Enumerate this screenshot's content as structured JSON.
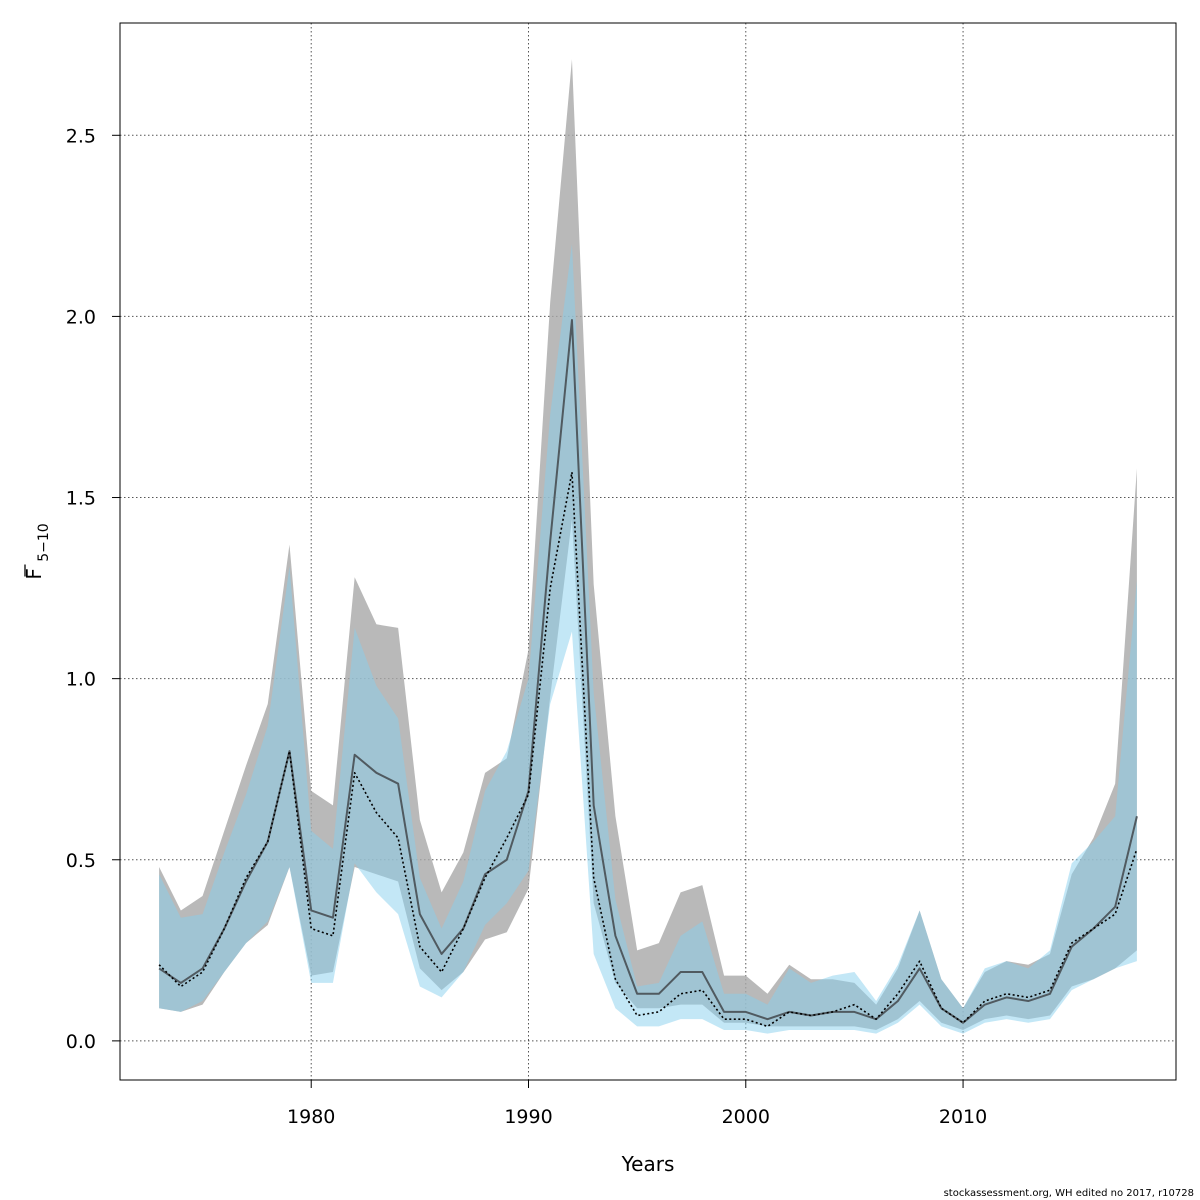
{
  "chart_data": {
    "type": "area",
    "xlabel": "Years",
    "ylabel_main": "F",
    "ylabel_sub": "5−10",
    "xlim": [
      1971.2,
      2019.8
    ],
    "ylim": [
      -0.108,
      2.81
    ],
    "xticks": [
      1980,
      1990,
      2000,
      2010
    ],
    "yticks": [
      0.0,
      0.5,
      1.0,
      1.5,
      2.0,
      2.5
    ],
    "ytick_labels": [
      "0.0",
      "0.5",
      "1.0",
      "1.5",
      "2.0",
      "2.5"
    ],
    "grid": true,
    "x": [
      1973,
      1974,
      1975,
      1976,
      1977,
      1978,
      1979,
      1980,
      1981,
      1982,
      1983,
      1984,
      1985,
      1986,
      1987,
      1988,
      1989,
      1990,
      1991,
      1992,
      1993,
      1994,
      1995,
      1996,
      1997,
      1998,
      1999,
      2000,
      2001,
      2002,
      2003,
      2004,
      2005,
      2006,
      2007,
      2008,
      2009,
      2010,
      2011,
      2012,
      2013,
      2014,
      2015,
      2016,
      2017,
      2018
    ],
    "series": [
      {
        "kind": "band",
        "color": "#a8a8a8",
        "lower": [
          0.09,
          0.08,
          0.1,
          0.19,
          0.27,
          0.32,
          0.48,
          0.18,
          0.19,
          0.48,
          0.46,
          0.44,
          0.2,
          0.14,
          0.19,
          0.28,
          0.3,
          0.42,
          0.95,
          1.44,
          0.38,
          0.16,
          0.09,
          0.09,
          0.1,
          0.1,
          0.05,
          0.05,
          0.04,
          0.04,
          0.04,
          0.04,
          0.04,
          0.03,
          0.06,
          0.11,
          0.05,
          0.03,
          0.06,
          0.07,
          0.06,
          0.07,
          0.15,
          0.17,
          0.2,
          0.25
        ],
        "upper": [
          0.48,
          0.36,
          0.4,
          0.58,
          0.76,
          0.93,
          1.37,
          0.69,
          0.65,
          1.28,
          1.15,
          1.14,
          0.61,
          0.41,
          0.52,
          0.74,
          0.78,
          1.08,
          2.04,
          2.71,
          1.26,
          0.62,
          0.25,
          0.27,
          0.41,
          0.43,
          0.18,
          0.18,
          0.13,
          0.21,
          0.17,
          0.17,
          0.16,
          0.1,
          0.2,
          0.36,
          0.17,
          0.09,
          0.19,
          0.22,
          0.21,
          0.24,
          0.46,
          0.56,
          0.71,
          1.58
        ]
      },
      {
        "kind": "band",
        "color": "#87cfee",
        "lower": [
          0.09,
          0.08,
          0.11,
          0.19,
          0.27,
          0.33,
          0.48,
          0.16,
          0.16,
          0.49,
          0.41,
          0.35,
          0.15,
          0.12,
          0.19,
          0.32,
          0.38,
          0.47,
          0.93,
          1.13,
          0.24,
          0.09,
          0.04,
          0.04,
          0.06,
          0.06,
          0.03,
          0.03,
          0.02,
          0.03,
          0.03,
          0.03,
          0.03,
          0.02,
          0.05,
          0.1,
          0.04,
          0.02,
          0.05,
          0.06,
          0.05,
          0.06,
          0.14,
          0.17,
          0.2,
          0.22
        ],
        "upper": [
          0.46,
          0.34,
          0.35,
          0.52,
          0.68,
          0.87,
          1.31,
          0.58,
          0.53,
          1.14,
          0.98,
          0.89,
          0.45,
          0.31,
          0.44,
          0.69,
          0.8,
          1.0,
          1.73,
          2.2,
          0.96,
          0.39,
          0.15,
          0.16,
          0.29,
          0.33,
          0.13,
          0.13,
          0.1,
          0.2,
          0.16,
          0.18,
          0.19,
          0.11,
          0.21,
          0.36,
          0.17,
          0.09,
          0.2,
          0.22,
          0.2,
          0.25,
          0.49,
          0.55,
          0.62,
          1.27
        ]
      },
      {
        "kind": "line",
        "style": "solid",
        "color": "#505a60",
        "values": [
          0.2,
          0.16,
          0.2,
          0.31,
          0.44,
          0.55,
          0.8,
          0.36,
          0.34,
          0.79,
          0.74,
          0.71,
          0.35,
          0.24,
          0.31,
          0.46,
          0.5,
          0.69,
          1.38,
          1.99,
          0.65,
          0.29,
          0.13,
          0.13,
          0.19,
          0.19,
          0.08,
          0.08,
          0.06,
          0.08,
          0.07,
          0.08,
          0.08,
          0.06,
          0.11,
          0.2,
          0.09,
          0.05,
          0.1,
          0.12,
          0.11,
          0.13,
          0.26,
          0.31,
          0.37,
          0.62
        ]
      },
      {
        "kind": "line",
        "style": "dotted",
        "color": "#000000",
        "values": [
          0.21,
          0.15,
          0.19,
          0.31,
          0.45,
          0.55,
          0.8,
          0.31,
          0.29,
          0.74,
          0.63,
          0.56,
          0.26,
          0.19,
          0.31,
          0.45,
          0.56,
          0.68,
          1.25,
          1.57,
          0.45,
          0.17,
          0.07,
          0.08,
          0.13,
          0.14,
          0.06,
          0.06,
          0.04,
          0.08,
          0.07,
          0.08,
          0.1,
          0.06,
          0.13,
          0.22,
          0.09,
          0.05,
          0.11,
          0.13,
          0.12,
          0.14,
          0.27,
          0.31,
          0.35,
          0.53
        ]
      }
    ]
  },
  "credit": "stockassessment.org, WH  edited  no  2017, r10728"
}
